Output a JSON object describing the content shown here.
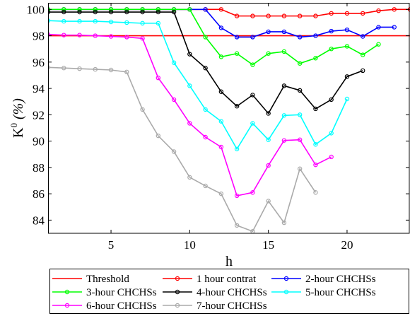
{
  "chart_data": {
    "type": "line",
    "xlabel": "h",
    "ylabel_base": "K",
    "ylabel_sup": "0",
    "ylabel_unit": " (%)",
    "xlim": [
      1,
      24
    ],
    "ylim": [
      83,
      100.5
    ],
    "xticks": [
      5,
      10,
      15,
      20
    ],
    "yticks": [
      84,
      86,
      88,
      90,
      92,
      94,
      96,
      98,
      100
    ],
    "grid": false,
    "legend_position": "below plot, boxed, 3 columns",
    "series": [
      {
        "name": "Threshold",
        "color": "#ff0000",
        "markers": false,
        "x": [
          1,
          24
        ],
        "y": [
          98,
          98
        ]
      },
      {
        "name": "1 hour contrat",
        "color": "#ff0000",
        "markers": true,
        "x": [
          1,
          2,
          3,
          4,
          5,
          6,
          7,
          8,
          9,
          10,
          11,
          12,
          13,
          14,
          15,
          16,
          17,
          18,
          19,
          20,
          21,
          22,
          23,
          24
        ],
        "y": [
          100,
          100,
          100,
          100,
          100,
          100,
          100,
          100,
          100,
          100,
          100,
          100,
          99.5,
          99.5,
          99.5,
          99.5,
          99.5,
          99.5,
          99.7,
          99.7,
          99.7,
          99.9,
          100,
          100
        ]
      },
      {
        "name": "2-hour CHCHSs",
        "color": "#0000ff",
        "markers": true,
        "x": [
          1,
          2,
          3,
          4,
          5,
          6,
          7,
          8,
          9,
          10,
          11,
          12,
          13,
          14,
          15,
          16,
          17,
          18,
          19,
          20,
          21,
          22,
          23
        ],
        "y": [
          100,
          100,
          100,
          100,
          100,
          100,
          100,
          100,
          100,
          100,
          100,
          98.6,
          97.9,
          97.9,
          98.3,
          98.3,
          97.9,
          98.0,
          98.35,
          98.45,
          97.95,
          98.65,
          98.65
        ]
      },
      {
        "name": "3-hour CHCHSs",
        "color": "#00ff00",
        "markers": true,
        "x": [
          1,
          2,
          3,
          4,
          5,
          6,
          7,
          8,
          9,
          10,
          11,
          12,
          13,
          14,
          15,
          16,
          17,
          18,
          19,
          20,
          21,
          22
        ],
        "y": [
          100,
          100,
          100,
          100,
          100,
          100,
          100,
          100,
          100,
          100,
          97.9,
          96.4,
          96.65,
          95.8,
          96.65,
          96.8,
          95.9,
          96.3,
          97.0,
          97.2,
          96.55,
          97.35
        ]
      },
      {
        "name": "4-hour CHCHSs",
        "color": "#000000",
        "markers": true,
        "x": [
          1,
          2,
          3,
          4,
          5,
          6,
          7,
          8,
          9,
          10,
          11,
          12,
          13,
          14,
          15,
          16,
          17,
          18,
          19,
          20,
          21
        ],
        "y": [
          99.8,
          99.8,
          99.8,
          99.8,
          99.8,
          99.8,
          99.8,
          99.8,
          99.8,
          96.6,
          95.55,
          93.75,
          92.65,
          93.5,
          92.1,
          94.2,
          93.85,
          92.45,
          93.15,
          94.9,
          95.35
        ]
      },
      {
        "name": "5-hour CHCHSs",
        "color": "#00ffff",
        "markers": true,
        "x": [
          1,
          2,
          3,
          4,
          5,
          6,
          7,
          8,
          9,
          10,
          11,
          12,
          13,
          14,
          15,
          16,
          17,
          18,
          19,
          20
        ],
        "y": [
          99.15,
          99.1,
          99.1,
          99.1,
          99.05,
          99.0,
          98.95,
          98.95,
          95.95,
          94.2,
          92.4,
          91.5,
          89.4,
          91.35,
          90.1,
          91.95,
          92.0,
          89.75,
          90.6,
          93.2
        ]
      },
      {
        "name": "6-hour CHCHSs",
        "color": "#ff00ff",
        "markers": true,
        "x": [
          1,
          2,
          3,
          4,
          5,
          6,
          7,
          8,
          9,
          10,
          11,
          12,
          13,
          14,
          15,
          16,
          17,
          18,
          19
        ],
        "y": [
          98.1,
          98.05,
          98.05,
          98.0,
          97.95,
          97.9,
          97.8,
          94.8,
          93.15,
          91.35,
          90.3,
          89.55,
          85.85,
          86.1,
          88.15,
          90.05,
          90.1,
          88.2,
          88.8
        ]
      },
      {
        "name": "7-hour CHCHSs",
        "color": "#aaaaaa",
        "markers": true,
        "x": [
          1,
          2,
          3,
          4,
          5,
          6,
          7,
          8,
          9,
          10,
          11,
          12,
          13,
          14,
          15,
          16,
          17,
          18
        ],
        "y": [
          95.6,
          95.55,
          95.5,
          95.45,
          95.4,
          95.25,
          92.4,
          90.4,
          89.2,
          87.25,
          86.6,
          86.0,
          83.6,
          83.15,
          85.45,
          83.8,
          87.9,
          86.1
        ]
      }
    ]
  }
}
